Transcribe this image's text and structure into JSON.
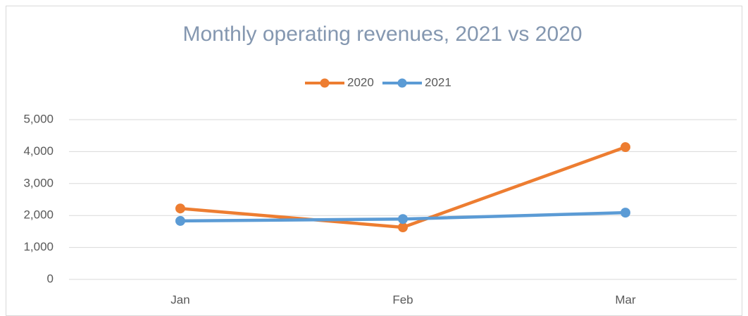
{
  "chart_data": {
    "type": "line",
    "title": "Monthly operating revenues, 2021 vs 2020",
    "categories": [
      "Jan",
      "Feb",
      "Mar"
    ],
    "series": [
      {
        "name": "2020",
        "color": "#ed7d31",
        "values": [
          2220,
          1630,
          4140
        ]
      },
      {
        "name": "2021",
        "color": "#5b9bd5",
        "values": [
          1830,
          1890,
          2090
        ]
      }
    ],
    "ylim": [
      0,
      5000
    ],
    "yticks": [
      0,
      {
        "value": 1000,
        "label": "1,000"
      },
      {
        "value": 2000,
        "label": "2,000"
      },
      {
        "value": 3000,
        "label": "3,000"
      },
      {
        "value": 4000,
        "label": "4,000"
      },
      {
        "value": 5000,
        "label": "5,000"
      }
    ],
    "grid": true,
    "legend": "top"
  }
}
